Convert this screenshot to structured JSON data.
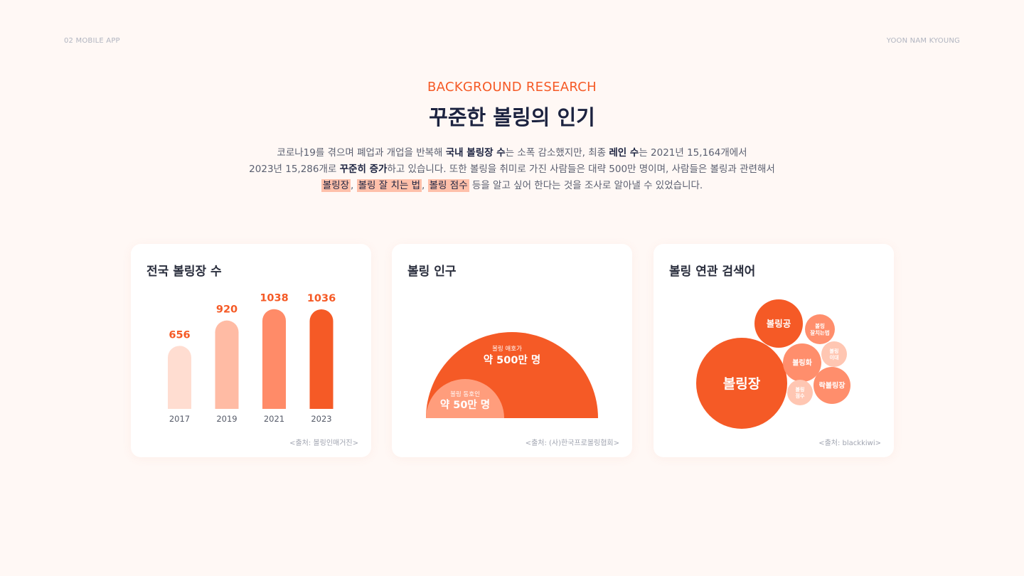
{
  "header": {
    "left_label": "02 MOBILE APP",
    "right_label": "YOON NAM KYOUNG",
    "eyebrow": "BACKGROUND RESEARCH",
    "title": "꾸준한 볼링의 인기"
  },
  "description": {
    "line1": [
      {
        "text": "코로나19를 겪으며 폐업과 개업을 반복해 ",
        "style": "plain"
      },
      {
        "text": "국내 볼링장 수",
        "style": "bold"
      },
      {
        "text": "는 소폭 감소했지만, 최종 ",
        "style": "plain"
      },
      {
        "text": "레인 수",
        "style": "bold"
      },
      {
        "text": "는 2021년 15,164개에서",
        "style": "plain"
      }
    ],
    "line2": [
      {
        "text": "2023년 15,286개로 ",
        "style": "plain"
      },
      {
        "text": "꾸준히 증가",
        "style": "bold"
      },
      {
        "text": "하고 있습니다. 또한 볼링을 취미로 가진 사람들은 대략 500만 명이며, 사람들은 볼링과 관련해서",
        "style": "plain"
      }
    ],
    "line3": [
      {
        "text": "볼링장",
        "style": "highlight"
      },
      {
        "text": ", ",
        "style": "plain"
      },
      {
        "text": "볼링 잘 치는 법",
        "style": "highlight"
      },
      {
        "text": ", ",
        "style": "plain"
      },
      {
        "text": "볼링 점수",
        "style": "highlight"
      },
      {
        "text": " 등을 알고 싶어 한다는 것을 조사로 알아낼 수 있었습니다.",
        "style": "plain"
      }
    ]
  },
  "colors": {
    "accent": "#f55a26",
    "bar_shades": [
      "#ffddd1",
      "#ffbba4",
      "#ff8b68",
      "#f55a26"
    ],
    "bubble_light": "#ffc6b2",
    "bubble_mid": "#ff8e6c",
    "background": "#fff8f5"
  },
  "cards": [
    {
      "title": "전국 볼링장 수",
      "source": "<출처: 볼링인매거진>"
    },
    {
      "title": "볼링 인구",
      "source": "<출처: (사)한국프로볼링협회>"
    },
    {
      "title": "볼링 연관 검색어",
      "source": "<출처: blackkiwi>"
    }
  ],
  "chart_data": [
    {
      "type": "bar",
      "title": "전국 볼링장 수",
      "categories": [
        "2017",
        "2019",
        "2021",
        "2023"
      ],
      "values": [
        656,
        920,
        1038,
        1036
      ],
      "ylim": [
        0,
        1100
      ],
      "grid": false
    },
    {
      "type": "area",
      "title": "볼링 인구",
      "series": [
        {
          "name": "볼링 애호가",
          "label": "약 500만 명",
          "value": 5000000
        },
        {
          "name": "볼링 동호인",
          "label": "약 50만 명",
          "value": 500000
        }
      ]
    },
    {
      "type": "scatter",
      "title": "볼링 연관 검색어",
      "bubbles": [
        {
          "label": "볼링장",
          "rank": 1,
          "shade": "accent"
        },
        {
          "label": "볼링공",
          "rank": 2,
          "shade": "accent"
        },
        {
          "label": "볼링화",
          "rank": 3,
          "shade": "mid"
        },
        {
          "label": "락볼링장",
          "rank": 4,
          "shade": "mid"
        },
        {
          "label": "볼링 잘치는법",
          "rank": 5,
          "shade": "mid"
        },
        {
          "label": "볼링 이대",
          "rank": 6,
          "shade": "light"
        },
        {
          "label": "볼링 점수",
          "rank": 7,
          "shade": "light"
        }
      ]
    }
  ]
}
